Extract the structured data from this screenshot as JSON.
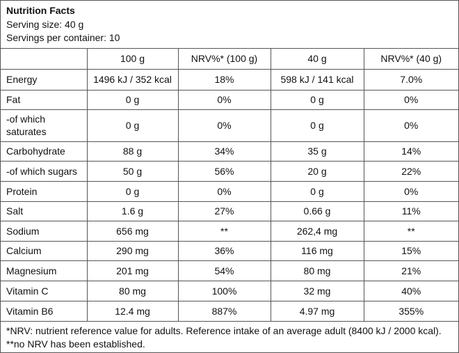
{
  "header": {
    "title": "Nutrition Facts",
    "serving_size": "Serving size: 40 g",
    "servings_per_container": "Servings per container: 10"
  },
  "table": {
    "columns": [
      "",
      "100 g",
      "NRV%* (100 g)",
      "40 g",
      "NRV%* (40 g)"
    ],
    "rows": [
      [
        "Energy",
        "1496 kJ / 352 kcal",
        "18%",
        "598 kJ / 141 kcal",
        "7.0%"
      ],
      [
        "Fat",
        "0 g",
        "0%",
        "0 g",
        "0%"
      ],
      [
        "-of which saturates",
        "0 g",
        "0%",
        "0 g",
        "0%"
      ],
      [
        "Carbohydrate",
        "88 g",
        "34%",
        "35 g",
        "14%"
      ],
      [
        "-of which sugars",
        "50 g",
        "56%",
        "20 g",
        "22%"
      ],
      [
        "Protein",
        "0 g",
        "0%",
        "0 g",
        "0%"
      ],
      [
        "Salt",
        "1.6 g",
        "27%",
        "0.66 g",
        "11%"
      ],
      [
        "Sodium",
        "656 mg",
        "**",
        "262,4 mg",
        "**"
      ],
      [
        "Calcium",
        "290 mg",
        "36%",
        "116 mg",
        "15%"
      ],
      [
        "Magnesium",
        "201 mg",
        "54%",
        "80 mg",
        "21%"
      ],
      [
        "Vitamin C",
        "80 mg",
        "100%",
        "32 mg",
        "40%"
      ],
      [
        "Vitamin B6",
        "12.4 mg",
        "887%",
        "4.97 mg",
        "355%"
      ]
    ]
  },
  "footnote": "*NRV: nutrient reference value for adults. Reference intake of an average adult (8400 kJ / 2000 kcal). **no NRV has been established."
}
